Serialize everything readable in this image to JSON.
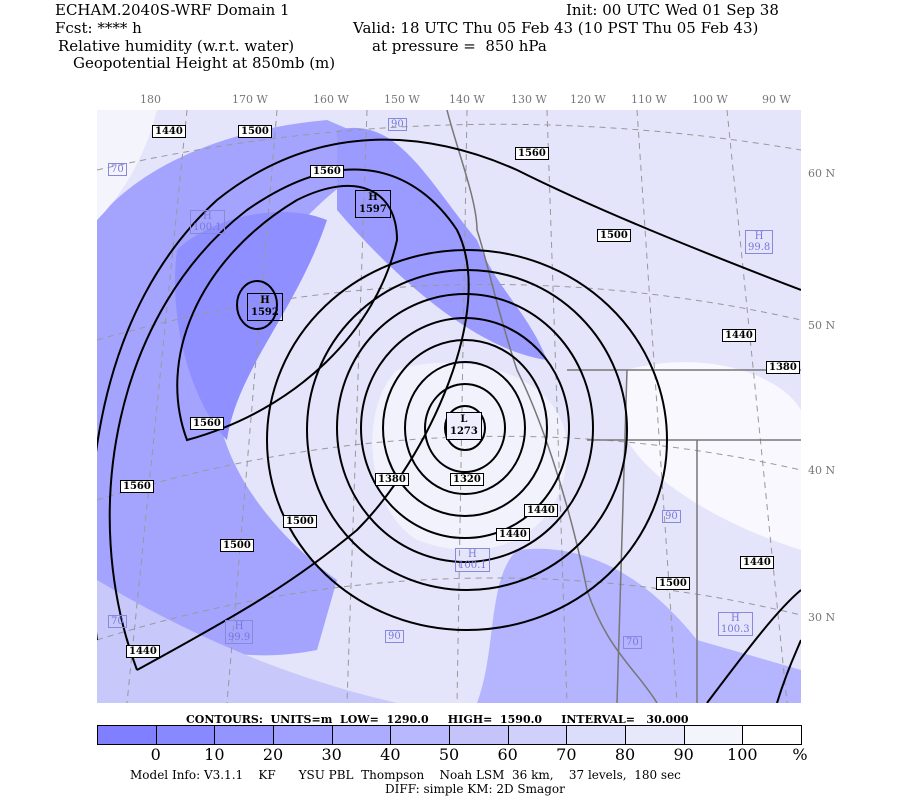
{
  "header": {
    "model": "ECHAM.2040S-WRF Domain 1",
    "init": "Init: 00 UTC Wed 01 Sep 38",
    "fcst": "Fcst: **** h",
    "valid": "Valid: 18 UTC Thu 05 Feb 43 (10 PST Thu 05 Feb 43)",
    "field1": "Relative humidity (w.r.t. water)",
    "pressure": "at pressure =  850 hPa",
    "field2": "Geopotential Height at 850mb (m)"
  },
  "lon_labels": [
    "180",
    "170 W",
    "160 W",
    "150 W",
    "140 W",
    "130 W",
    "120 W",
    "110 W",
    "100 W",
    "90 W"
  ],
  "lat_labels": [
    "60 N",
    "50 N",
    "40 N",
    "30 N"
  ],
  "contour_labels": [
    "1440",
    "1500",
    "1560",
    "1560",
    "1500",
    "1560",
    "1440",
    "1380",
    "1560",
    "1500",
    "1500",
    "1380",
    "1320",
    "1440",
    "1440",
    "1500",
    "1440",
    "1440"
  ],
  "centers": [
    {
      "type": "H",
      "value": "1597"
    },
    {
      "type": "H",
      "value": "1592"
    },
    {
      "type": "L",
      "value": "1273"
    }
  ],
  "rh_labels": [
    "90",
    "70",
    "H\n100.1",
    "H\n99.9",
    "70",
    "90",
    "H\n99.8",
    "H\n100.3",
    "70",
    "90",
    "H\n100.1"
  ],
  "contours_info": {
    "text": "CONTOURS:  UNITS=m  LOW=  1290.0     HIGH=  1590.0     INTERVAL=   30.000"
  },
  "colorbar": {
    "colors": [
      "#7f7fff",
      "#8888ff",
      "#9494ff",
      "#a0a0ff",
      "#acacff",
      "#b8b8ff",
      "#c4c4fb",
      "#d0d0fb",
      "#dcdcfb",
      "#e8e8fb",
      "#f4f4fd",
      "#ffffff"
    ],
    "labels": [
      "0",
      "10",
      "20",
      "30",
      "40",
      "50",
      "60",
      "70",
      "80",
      "90",
      "100"
    ],
    "unit": "%"
  },
  "footer": {
    "model_info": "Model Info: V3.1.1    KF      YSU PBL  Thompson    Noah LSM  36 km,    37 levels,  180 sec",
    "diff": "DIFF: simple KM: 2D Smagor"
  }
}
